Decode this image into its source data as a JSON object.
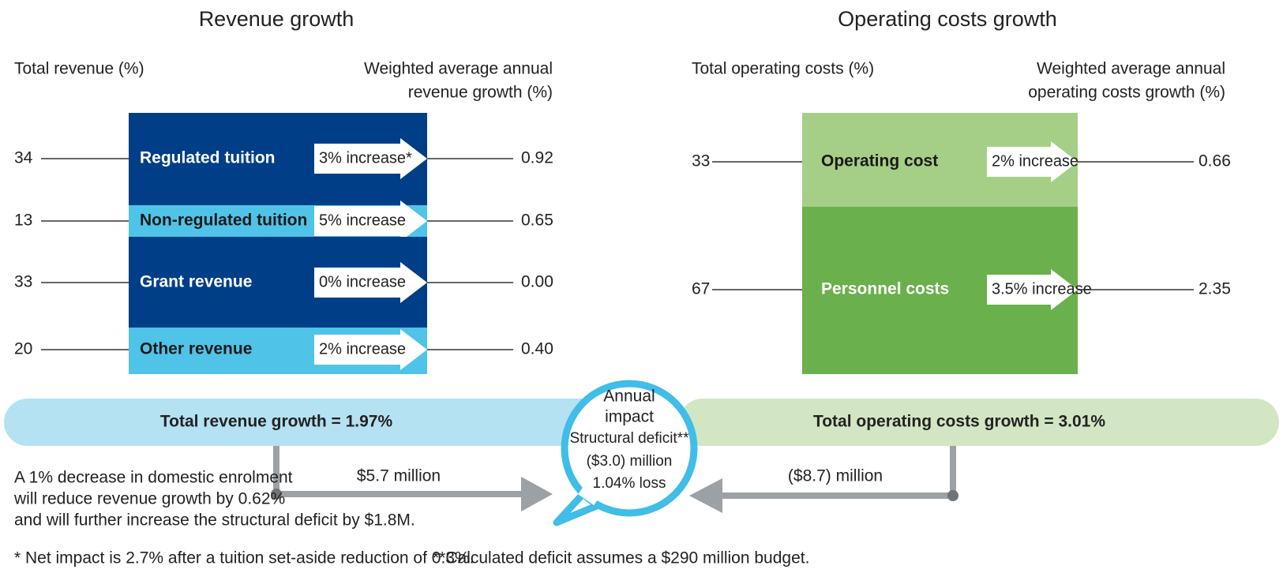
{
  "revenue": {
    "title": "Revenue growth",
    "left_label": "Total revenue (%)",
    "right_label": [
      "Weighted average annual",
      "revenue growth (%)"
    ],
    "rows": [
      {
        "share": "34",
        "name": "Regulated tuition",
        "change": "3% increase*",
        "growth": "0.92"
      },
      {
        "share": "13",
        "name": "Non-regulated tuition",
        "change": "5% increase",
        "growth": "0.65"
      },
      {
        "share": "33",
        "name": "Grant revenue",
        "change": "0% increase",
        "growth": "0.00"
      },
      {
        "share": "20",
        "name": "Other revenue",
        "change": "2% increase",
        "growth": "0.40"
      }
    ],
    "total": "Total revenue growth = 1.97%",
    "amount": "$5.7 million",
    "note": [
      "A 1% decrease in domestic enrolment",
      "will reduce revenue growth by 0.62%",
      "and will further increase the structural deficit by $1.8M."
    ]
  },
  "costs": {
    "title": "Operating costs growth",
    "left_label": "Total operating costs (%)",
    "right_label": [
      "Weighted average annual",
      "operating costs growth (%)"
    ],
    "rows": [
      {
        "share": "33",
        "name": "Operating cost",
        "change": "2% increase",
        "growth": "0.66"
      },
      {
        "share": "67",
        "name": "Personnel costs",
        "change": "3.5% increase",
        "growth": "2.35"
      }
    ],
    "total": "Total operating costs growth = 3.01%",
    "amount": "($8.7) million"
  },
  "impact": [
    "Annual",
    "impact",
    "Structural deficit**",
    "($3.0) million",
    "1.04% loss"
  ],
  "footnotes": [
    "* Net impact is 2.7% after a tuition set-aside reduction of 0.3%.",
    "**Calculated deficit assumes a $290 million budget."
  ]
}
